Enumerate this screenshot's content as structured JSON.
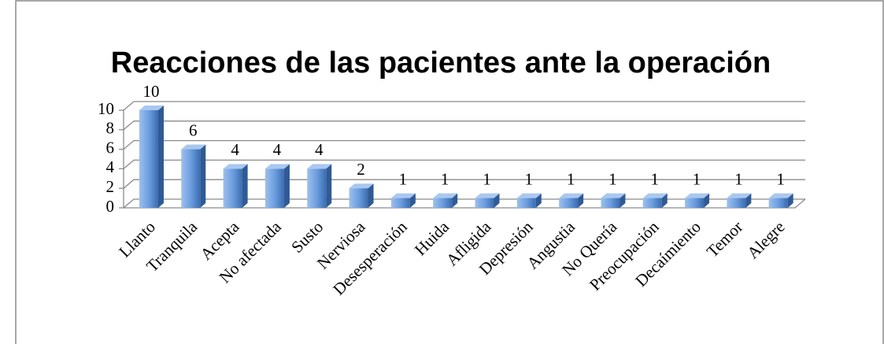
{
  "chart_data": {
    "type": "bar",
    "title": "Reacciones de las pacientes ante la operación",
    "categories": [
      "Llanto",
      "Tranquila",
      "Acepta",
      "No afectada",
      "Susto",
      "Nerviosa",
      "Desesperación",
      "Huida",
      "Afligida",
      "Depresión",
      "Angustia",
      "No Quería",
      "Preocupación",
      "Decaímiento",
      "Temor",
      "Alegre"
    ],
    "values": [
      10,
      6,
      4,
      4,
      4,
      2,
      1,
      1,
      1,
      1,
      1,
      1,
      1,
      1,
      1,
      1
    ],
    "color": "#4f81bd",
    "ylim": [
      0,
      10
    ],
    "yticks": [
      0,
      2,
      4,
      6,
      8,
      10
    ],
    "grid": true
  }
}
